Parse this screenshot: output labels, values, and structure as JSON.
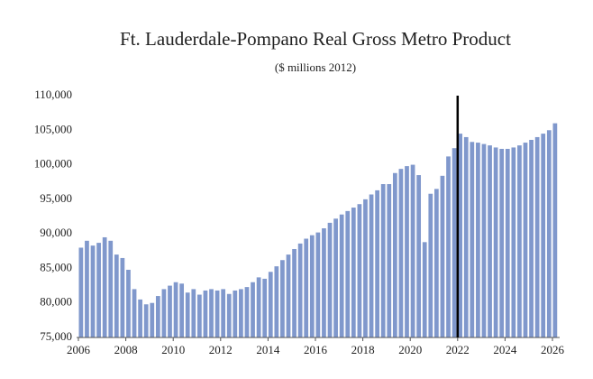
{
  "chart_data": {
    "type": "bar",
    "title": "Ft. Lauderdale-Pompano Real Gross Metro Product",
    "subtitle": "($ millions 2012)",
    "color": "#8098cc",
    "vline_x": 2022,
    "x": [
      2006,
      2006.25,
      2006.5,
      2006.75,
      2007,
      2007.25,
      2007.5,
      2007.75,
      2008,
      2008.25,
      2008.5,
      2008.75,
      2009,
      2009.25,
      2009.5,
      2009.75,
      2010,
      2010.25,
      2010.5,
      2010.75,
      2011,
      2011.25,
      2011.5,
      2011.75,
      2012,
      2012.25,
      2012.5,
      2012.75,
      2013,
      2013.25,
      2013.5,
      2013.75,
      2014,
      2014.25,
      2014.5,
      2014.75,
      2015,
      2015.25,
      2015.5,
      2015.75,
      2016,
      2016.25,
      2016.5,
      2016.75,
      2017,
      2017.25,
      2017.5,
      2017.75,
      2018,
      2018.25,
      2018.5,
      2018.75,
      2019,
      2019.25,
      2019.5,
      2019.75,
      2020,
      2020.25,
      2020.5,
      2020.75,
      2021,
      2021.25,
      2021.5,
      2021.75,
      2022,
      2022.25,
      2022.5,
      2022.75,
      2023,
      2023.25,
      2023.5,
      2023.75,
      2024,
      2024.25,
      2024.5,
      2024.75,
      2025,
      2025.25,
      2025.5,
      2025.75,
      2026
    ],
    "values": [
      88000,
      89000,
      88300,
      88700,
      89500,
      89000,
      87000,
      86500,
      84800,
      82000,
      80500,
      79800,
      80000,
      81000,
      82000,
      82500,
      83000,
      82800,
      81500,
      82000,
      81200,
      81800,
      82000,
      81800,
      82000,
      81300,
      81800,
      82000,
      82300,
      83000,
      83700,
      83500,
      84500,
      85300,
      86200,
      87000,
      87800,
      88600,
      89300,
      89800,
      90200,
      90800,
      91600,
      92200,
      92800,
      93300,
      93800,
      94300,
      95000,
      95700,
      96300,
      97200,
      97200,
      98800,
      99400,
      99800,
      100000,
      98500,
      88800,
      95800,
      96500,
      98400,
      101200,
      102400,
      104500,
      104000,
      103300,
      103200,
      103000,
      102800,
      102500,
      102300,
      102300,
      102500,
      102800,
      103200,
      103600,
      104000,
      104500,
      105000,
      106000
    ],
    "xlim": [
      2006,
      2026
    ],
    "xticks": [
      2006,
      2008,
      2010,
      2012,
      2014,
      2016,
      2018,
      2020,
      2022,
      2024,
      2026
    ],
    "ylim": [
      75000,
      110000
    ],
    "yticks": [
      {
        "value": 75000,
        "label": "75,000"
      },
      {
        "value": 80000,
        "label": "80,000"
      },
      {
        "value": 85000,
        "label": "85,000"
      },
      {
        "value": 90000,
        "label": "90,000"
      },
      {
        "value": 95000,
        "label": "95,000"
      },
      {
        "value": 100000,
        "label": "100,000"
      },
      {
        "value": 105000,
        "label": "105,000"
      },
      {
        "value": 110000,
        "label": "110,000"
      }
    ]
  }
}
